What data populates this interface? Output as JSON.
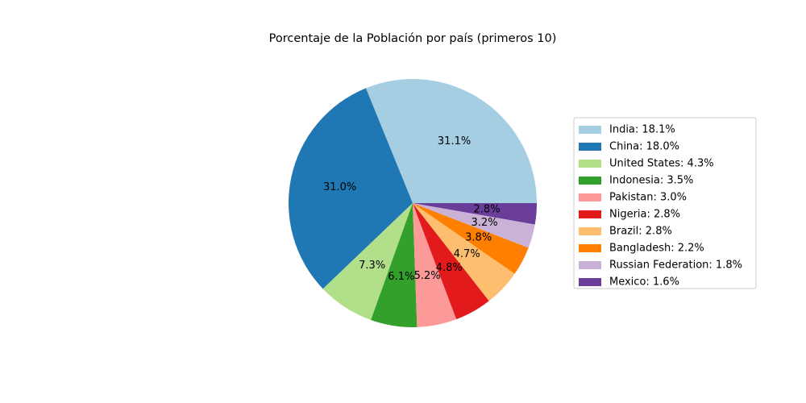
{
  "chart_data": {
    "type": "pie",
    "title": "Porcentaje de la Población por país (primeros 10)",
    "slices": [
      {
        "label": "India",
        "legend": "India: 18.1%",
        "value": 18.1,
        "pct_label": "31.1%",
        "color": "#a6cee3"
      },
      {
        "label": "China",
        "legend": "China: 18.0%",
        "value": 18.0,
        "pct_label": "31.0%",
        "color": "#1f78b4"
      },
      {
        "label": "United States",
        "legend": "United States: 4.3%",
        "value": 4.3,
        "pct_label": "7.3%",
        "color": "#b2df8a"
      },
      {
        "label": "Indonesia",
        "legend": "Indonesia: 3.5%",
        "value": 3.5,
        "pct_label": "6.1%",
        "color": "#33a02c"
      },
      {
        "label": "Pakistan",
        "legend": "Pakistan: 3.0%",
        "value": 3.0,
        "pct_label": "5.2%",
        "color": "#fb9a99"
      },
      {
        "label": "Nigeria",
        "legend": "Nigeria: 2.8%",
        "value": 2.8,
        "pct_label": "4.8%",
        "color": "#e31a1c"
      },
      {
        "label": "Brazil",
        "legend": "Brazil: 2.8%",
        "value": 2.8,
        "pct_label": "4.7%",
        "color": "#fdbf6f"
      },
      {
        "label": "Bangladesh",
        "legend": "Bangladesh: 2.2%",
        "value": 2.2,
        "pct_label": "3.8%",
        "color": "#ff7f00"
      },
      {
        "label": "Russian Federation",
        "legend": "Russian Federation: 1.8%",
        "value": 1.8,
        "pct_label": "3.2%",
        "color": "#cab2d6"
      },
      {
        "label": "Mexico",
        "legend": "Mexico: 1.6%",
        "value": 1.6,
        "pct_label": "2.8%",
        "color": "#6a3d9a"
      }
    ],
    "start_angle": 0,
    "direction": "counterclockwise",
    "legend_position": "right"
  }
}
